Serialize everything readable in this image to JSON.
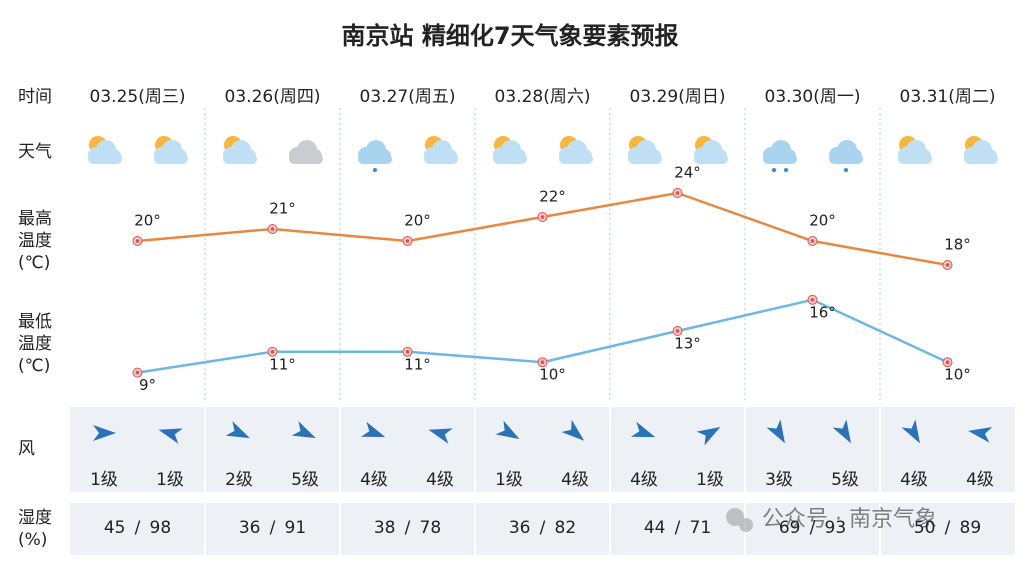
{
  "chart_data": {
    "type": "line",
    "title": "南京站 精细化7天气象要素预报",
    "row_labels": {
      "time": "时间",
      "weather": "天气",
      "wind": "风",
      "humidity": "湿度(%)"
    },
    "categories": [
      "03.25(周三)",
      "03.26(周四)",
      "03.27(周五)",
      "03.28(周六)",
      "03.29(周日)",
      "03.30(周一)",
      "03.31(周二)"
    ],
    "series": [
      {
        "name": "最高温度(℃)",
        "color": "#e9873f",
        "values": [
          20,
          21,
          20,
          22,
          24,
          20,
          18
        ],
        "value_labels": [
          "20°",
          "21°",
          "20°",
          "22°",
          "24°",
          "20°",
          "18°"
        ]
      },
      {
        "name": "最低温度(℃)",
        "color": "#6cb8e2",
        "axis": "y2",
        "values": [
          9,
          11,
          11,
          10,
          13,
          16,
          10
        ],
        "value_labels": [
          "9°",
          "11°",
          "11°",
          "10°",
          "13°",
          "16°",
          "10°"
        ]
      }
    ],
    "ylim": [
      16,
      25
    ],
    "y2lim": [
      8,
      18
    ],
    "wind": {
      "directions": [
        0,
        196,
        25,
        25,
        20,
        196,
        30,
        40,
        20,
        330,
        60,
        60,
        60,
        190
      ],
      "levels": [
        "1级",
        "1级",
        "2级",
        "5级",
        "4级",
        "4级",
        "1级",
        "4级",
        "4级",
        "1级",
        "3级",
        "5级",
        "4级",
        "4级"
      ]
    },
    "humidity": {
      "separator": "/",
      "values": [
        [
          45,
          98
        ],
        [
          36,
          91
        ],
        [
          38,
          78
        ],
        [
          36,
          82
        ],
        [
          44,
          71
        ],
        [
          69,
          93
        ],
        [
          50,
          89
        ]
      ],
      "colors": [
        "#2f8fd0",
        "#e07a2a"
      ]
    },
    "watermark": "公众号 · 南京气象"
  }
}
